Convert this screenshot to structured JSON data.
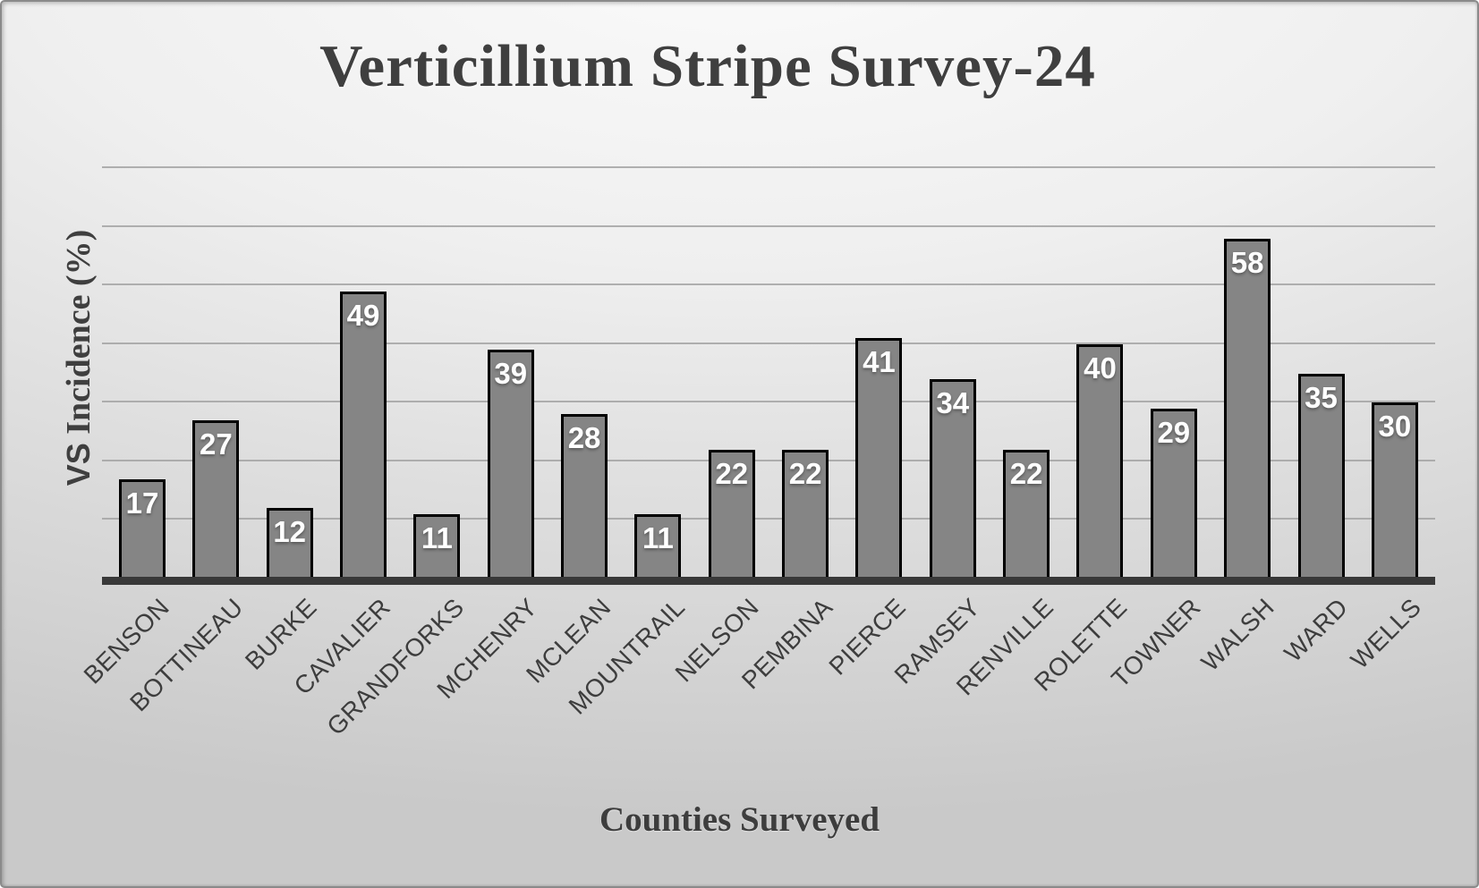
{
  "chart_data": {
    "type": "bar",
    "title": "Verticillium Stripe Survey-24",
    "xlabel": "Counties Surveyed",
    "ylabel": "VS Incidence (%)",
    "categories": [
      "BENSON",
      "BOTTINEAU",
      "BURKE",
      "CAVALIER",
      "GRANDFORKS",
      "MCHENRY",
      "MCLEAN",
      "MOUNTRAIL",
      "NELSON",
      "PEMBINA",
      "PIERCE",
      "RAMSEY",
      "RENVILLE",
      "ROLETTE",
      "TOWNER",
      "WALSH",
      "WARD",
      "WELLS"
    ],
    "values": [
      17,
      27,
      12,
      49,
      11,
      39,
      28,
      11,
      22,
      22,
      41,
      34,
      22,
      40,
      29,
      58,
      35,
      30
    ],
    "ylim": [
      0,
      70
    ],
    "gridline_step": 10,
    "grid": true,
    "legend": false,
    "y_tick_labels_visible": false,
    "data_labels_position": "inside-end",
    "category_label_rotation_deg": 45,
    "colors": {
      "bar_fill": "#858585",
      "bar_border": "#000000",
      "data_label": "#ffffff",
      "gridline": "#a3a3a3",
      "axis_line": "#383838",
      "text": "#3f3f3f"
    }
  }
}
